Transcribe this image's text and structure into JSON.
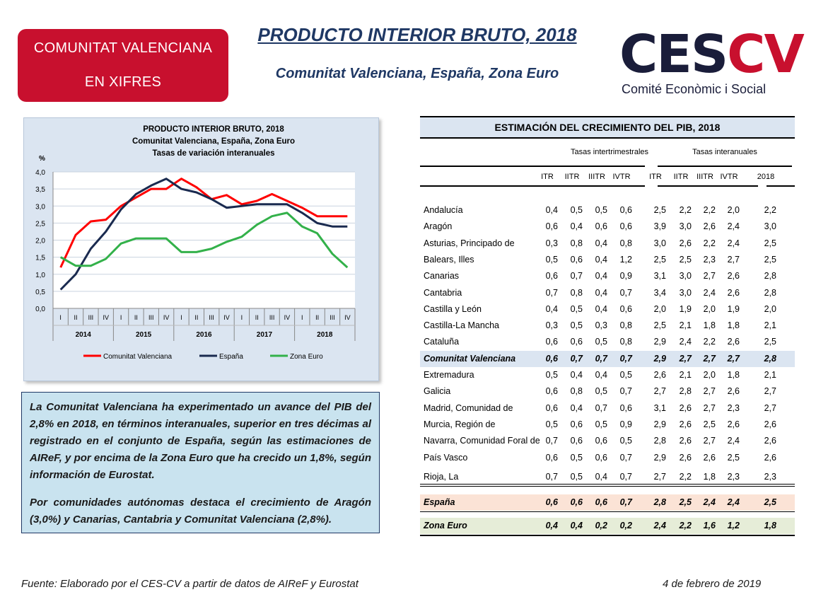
{
  "badge": {
    "line1": "COMUNITAT VALENCIANA",
    "line2": "EN XIFRES"
  },
  "header": {
    "title": "PRODUCTO INTERIOR BRUTO, 2018",
    "subtitle": "Comunitat Valenciana, España, Zona Euro"
  },
  "logo": {
    "ces": "CES",
    "cv": "CV",
    "tagline": "Comité Econòmic i Social"
  },
  "colors": {
    "brand_red": "#c8102e",
    "navy": "#1f3864",
    "cv_line": "#ff0000",
    "es_line": "#1a2a4f",
    "ze_line": "#33b14a"
  },
  "chart_data": {
    "type": "line",
    "title": "PRODUCTO  INTERIOR BRUTO, 2018",
    "subtitle": "Comunitat Valenciana,  España, Zona Euro",
    "subtitle2": "Tasas de variación interanuales",
    "ylabel": "%",
    "ylim": [
      0,
      4
    ],
    "yticks": [
      "0,0",
      "0,5",
      "1,0",
      "1,5",
      "2,0",
      "2,5",
      "3,0",
      "3,5",
      "4,0"
    ],
    "categories": [
      "I",
      "II",
      "III",
      "IV",
      "I",
      "II",
      "III",
      "IV",
      "I",
      "II",
      "III",
      "IV",
      "I",
      "II",
      "III",
      "IV",
      "I",
      "II",
      "III",
      "IV"
    ],
    "years": [
      "2014",
      "2015",
      "2016",
      "2017",
      "2018"
    ],
    "grid": true,
    "legend_position": "bottom",
    "series": [
      {
        "name": "Comunitat Valenciana",
        "color": "#ff0000",
        "values": [
          1.2,
          2.15,
          2.55,
          2.6,
          3.0,
          3.25,
          3.5,
          3.5,
          3.8,
          3.55,
          3.2,
          3.32,
          3.05,
          3.15,
          3.35,
          3.15,
          2.95,
          2.7,
          2.7,
          2.7
        ]
      },
      {
        "name": "España",
        "color": "#1a2a4f",
        "values": [
          0.55,
          1.0,
          1.75,
          2.25,
          2.9,
          3.35,
          3.6,
          3.8,
          3.5,
          3.4,
          3.2,
          2.95,
          3.0,
          3.05,
          3.05,
          3.05,
          2.8,
          2.5,
          2.4,
          2.4
        ]
      },
      {
        "name": "Zona Euro",
        "color": "#33b14a",
        "values": [
          1.5,
          1.25,
          1.25,
          1.45,
          1.9,
          2.05,
          2.05,
          2.05,
          1.65,
          1.65,
          1.75,
          1.95,
          2.1,
          2.45,
          2.7,
          2.8,
          2.4,
          2.2,
          1.6,
          1.2
        ]
      }
    ]
  },
  "textbox": {
    "p1": "La Comunitat Valenciana ha experimentado un avance del PIB del 2,8% en 2018, en términos interanuales, superior en tres décimas al registrado en el conjunto de España, según las estimaciones de AIReF, y por encima de la Zona Euro que ha crecido un 1,8%, según información de Eurostat.",
    "p2": "Por comunidades autónomas destaca el crecimiento de Aragón (3,0%) y Canarias, Cantabria y Comunitat Valenciana (2,8%)."
  },
  "table": {
    "title": "ESTIMACIÓN DEL CRECIMIENTO DEL PIB, 2018",
    "group1": "Tasas intertrimestrales",
    "group2": "Tasas interanuales",
    "columns": [
      "ITR",
      "IITR",
      "IIITR",
      "IVTR",
      "ITR",
      "IITR",
      "IIITR",
      "IVTR",
      "2018"
    ],
    "rows": [
      {
        "name": "Andalucía",
        "values": [
          "0,4",
          "0,5",
          "0,5",
          "0,6",
          "2,5",
          "2,2",
          "2,2",
          "2,0",
          "2,2"
        ]
      },
      {
        "name": "Aragón",
        "values": [
          "0,6",
          "0,4",
          "0,6",
          "0,6",
          "3,9",
          "3,0",
          "2,6",
          "2,4",
          "3,0"
        ]
      },
      {
        "name": "Asturias, Principado de",
        "values": [
          "0,3",
          "0,8",
          "0,4",
          "0,8",
          "3,0",
          "2,6",
          "2,2",
          "2,4",
          "2,5"
        ]
      },
      {
        "name": "Balears, Illes",
        "values": [
          "0,5",
          "0,6",
          "0,4",
          "1,2",
          "2,5",
          "2,5",
          "2,3",
          "2,7",
          "2,5"
        ]
      },
      {
        "name": "Canarias",
        "values": [
          "0,6",
          "0,7",
          "0,4",
          "0,9",
          "3,1",
          "3,0",
          "2,7",
          "2,6",
          "2,8"
        ]
      },
      {
        "name": "Cantabria",
        "values": [
          "0,7",
          "0,8",
          "0,4",
          "0,7",
          "3,4",
          "3,0",
          "2,4",
          "2,6",
          "2,8"
        ]
      },
      {
        "name": "Castilla y León",
        "values": [
          "0,4",
          "0,5",
          "0,4",
          "0,6",
          "2,0",
          "1,9",
          "2,0",
          "1,9",
          "2,0"
        ]
      },
      {
        "name": "Castilla-La Mancha",
        "values": [
          "0,3",
          "0,5",
          "0,3",
          "0,8",
          "2,5",
          "2,1",
          "1,8",
          "1,8",
          "2,1"
        ]
      },
      {
        "name": "Cataluña",
        "values": [
          "0,6",
          "0,6",
          "0,5",
          "0,8",
          "2,9",
          "2,4",
          "2,2",
          "2,6",
          "2,5"
        ]
      },
      {
        "name": "Comunitat Valenciana",
        "highlight": "cv",
        "values": [
          "0,6",
          "0,7",
          "0,7",
          "0,7",
          "2,9",
          "2,7",
          "2,7",
          "2,7",
          "2,8"
        ]
      },
      {
        "name": "Extremadura",
        "values": [
          "0,5",
          "0,4",
          "0,4",
          "0,5",
          "2,6",
          "2,1",
          "2,0",
          "1,8",
          "2,1"
        ]
      },
      {
        "name": "Galicia",
        "values": [
          "0,6",
          "0,8",
          "0,5",
          "0,7",
          "2,7",
          "2,8",
          "2,7",
          "2,6",
          "2,7"
        ]
      },
      {
        "name": "Madrid, Comunidad de",
        "values": [
          "0,6",
          "0,4",
          "0,7",
          "0,6",
          "3,1",
          "2,6",
          "2,7",
          "2,3",
          "2,7"
        ]
      },
      {
        "name": "Murcia, Región de",
        "values": [
          "0,5",
          "0,6",
          "0,5",
          "0,9",
          "2,9",
          "2,6",
          "2,5",
          "2,6",
          "2,6"
        ]
      },
      {
        "name": "Navarra, Comunidad Foral de",
        "values": [
          "0,7",
          "0,6",
          "0,6",
          "0,5",
          "2,8",
          "2,6",
          "2,7",
          "2,4",
          "2,6"
        ]
      },
      {
        "name": "País Vasco",
        "values": [
          "0,6",
          "0,5",
          "0,6",
          "0,7",
          "2,9",
          "2,6",
          "2,6",
          "2,5",
          "2,6"
        ]
      },
      {
        "name": "Rioja, La",
        "values": [
          "0,7",
          "0,5",
          "0,4",
          "0,7",
          "2,7",
          "2,2",
          "1,8",
          "2,3",
          "2,3"
        ]
      }
    ],
    "spain": {
      "name": "España",
      "values": [
        "0,6",
        "0,6",
        "0,6",
        "0,7",
        "2,8",
        "2,5",
        "2,4",
        "2,4",
        "2,5"
      ]
    },
    "euro": {
      "name": "Zona Euro",
      "values": [
        "0,4",
        "0,4",
        "0,2",
        "0,2",
        "2,4",
        "2,2",
        "1,6",
        "1,2",
        "1,8"
      ]
    }
  },
  "footer": {
    "source": "Fuente: Elaborado por el CES-CV a partir de datos de AIReF y Eurostat",
    "date": "4 de febrero de 2019"
  }
}
